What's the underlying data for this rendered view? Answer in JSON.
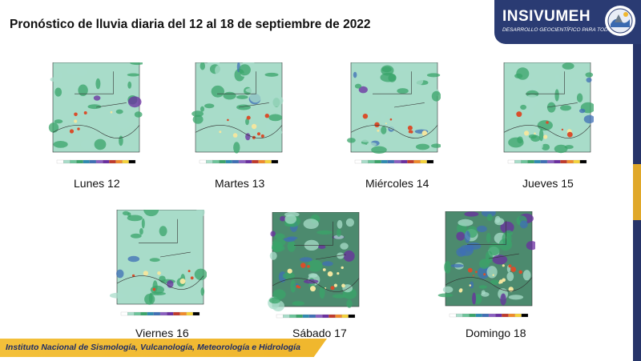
{
  "header": {
    "title": "Pronóstico de lluvia diaria del 12 al 18 de septiembre de 2022"
  },
  "logo": {
    "name": "INSIVUMEH",
    "tagline": "DESARROLLO GEOCIENTÍFICO PARA TODOS"
  },
  "panels": [
    {
      "day": "Lunes 12",
      "intensity": 0.2
    },
    {
      "day": "Martes 13",
      "intensity": 0.45
    },
    {
      "day": "Miércoles 14",
      "intensity": 0.4
    },
    {
      "day": "Jueves 15",
      "intensity": 0.35
    },
    {
      "day": "Viernes 16",
      "intensity": 0.3
    },
    {
      "day": "Sábado 17",
      "intensity": 0.8
    },
    {
      "day": "Domingo 18",
      "intensity": 0.9
    }
  ],
  "footer": {
    "text": "Instituto Nacional de Sismología, Vulcanología, Meteorología e Hidrología"
  },
  "colors": {
    "brand_navy": "#263469",
    "brand_gold": "#f0b72e",
    "rain_light": "#a8dcc9",
    "rain_green": "#3aa46a",
    "rain_blue": "#3f6fb5",
    "rain_purple": "#6a2ea0",
    "rain_heavy": "#d94e2b"
  }
}
